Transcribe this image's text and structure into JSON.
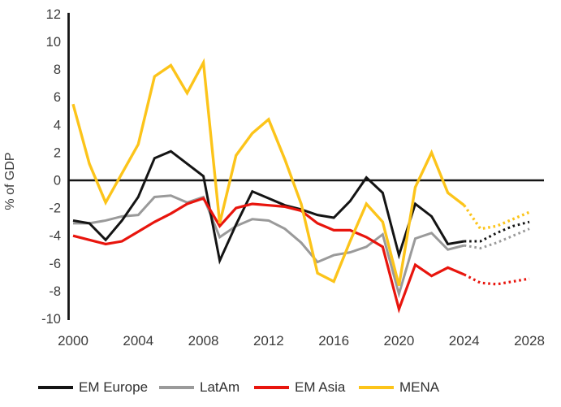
{
  "chart_data": {
    "type": "line",
    "title": "",
    "ylabel": "% of GDP",
    "ylim": [
      -10,
      12
    ],
    "ytick_step": 2,
    "grid": false,
    "zero_line": true,
    "legend_position": "bottom",
    "x_start": 2000,
    "x_end": 2028,
    "xticks": [
      2000,
      2004,
      2008,
      2012,
      2016,
      2020,
      2024,
      2028
    ],
    "forecast_from_year": 2024,
    "forecast_style": "dotted",
    "series": [
      {
        "name": "EM Europe",
        "color": "#141414",
        "width": 3,
        "values": [
          -2.9,
          -3.1,
          -4.3,
          -2.9,
          -1.2,
          1.6,
          2.1,
          1.2,
          0.3,
          -5.8,
          -3.2,
          -0.8,
          -1.3,
          -1.8,
          -2.1,
          -2.5,
          -2.7,
          -1.5,
          0.2,
          -0.9,
          -5.4,
          -1.7,
          -2.6,
          -4.6,
          -4.4,
          -4.4,
          -3.8,
          -3.3,
          -3.0
        ]
      },
      {
        "name": "LatAm",
        "color": "#9a9a9a",
        "width": 3,
        "values": [
          -3.1,
          -3.1,
          -2.9,
          -2.6,
          -2.5,
          -1.2,
          -1.1,
          -1.6,
          -1.2,
          -4.1,
          -3.3,
          -2.8,
          -2.9,
          -3.5,
          -4.5,
          -5.9,
          -5.4,
          -5.2,
          -4.8,
          -3.9,
          -8.2,
          -4.2,
          -3.8,
          -5.0,
          -4.7,
          -4.9,
          -4.5,
          -4.0,
          -3.5
        ]
      },
      {
        "name": "EM Asia",
        "color": "#e8150d",
        "width": 3.2,
        "values": [
          -4.0,
          -4.3,
          -4.6,
          -4.4,
          -3.7,
          -3.0,
          -2.4,
          -1.7,
          -1.3,
          -3.3,
          -2.0,
          -1.7,
          -1.8,
          -1.9,
          -2.2,
          -3.1,
          -3.6,
          -3.6,
          -4.1,
          -4.8,
          -9.3,
          -6.1,
          -6.9,
          -6.3,
          -6.8,
          -7.4,
          -7.5,
          -7.3,
          -7.1
        ]
      },
      {
        "name": "MENA",
        "color": "#fcc41a",
        "width": 3.4,
        "values": [
          5.5,
          1.2,
          -1.6,
          0.5,
          2.6,
          7.5,
          8.3,
          6.3,
          8.5,
          -3.1,
          1.8,
          3.4,
          4.4,
          1.5,
          -1.7,
          -6.7,
          -7.3,
          -4.4,
          -1.7,
          -3.0,
          -7.6,
          -0.5,
          2.0,
          -0.9,
          -1.8,
          -3.5,
          -3.3,
          -2.8,
          -2.3
        ]
      }
    ]
  }
}
